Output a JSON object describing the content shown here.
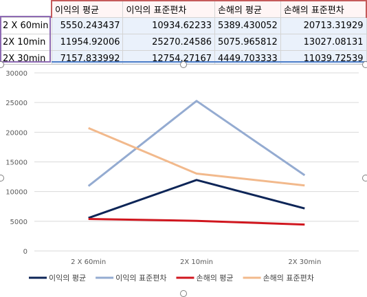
{
  "table": {
    "headers": [
      "",
      "이익의 평균",
      "이익의 표준편차",
      "손해의 평균",
      "손해의 표준편차"
    ],
    "rows": [
      {
        "label": "2 X 60min",
        "values": [
          "5550.243437",
          "10934.62233",
          "5389.430052",
          "20713.31929"
        ]
      },
      {
        "label": "2X 10min",
        "values": [
          "11954.92006",
          "25270.24586",
          "5075.965812",
          "13027.08131"
        ]
      },
      {
        "label": "2X 30min",
        "values": [
          "7157.833992",
          "12754.27167",
          "4449.703333",
          "11039.72539"
        ]
      }
    ]
  },
  "chart_data": {
    "type": "line",
    "categories": [
      "2 X 60min",
      "2X 10min",
      "2X 30min"
    ],
    "series": [
      {
        "name": "이익의 평균",
        "values": [
          5550.243437,
          11954.92006,
          7157.833992
        ],
        "color": "#0d2557"
      },
      {
        "name": "이익의 표준편차",
        "values": [
          10934.62233,
          25270.24586,
          12754.27167
        ],
        "color": "#94abd1"
      },
      {
        "name": "손해의 평균",
        "values": [
          5389.430052,
          5075.965812,
          4449.703333
        ],
        "color": "#d0161e"
      },
      {
        "name": "손해의 표준편차",
        "values": [
          20713.31929,
          13027.08131,
          11039.72539
        ],
        "color": "#f2b98c"
      }
    ],
    "yticks": [
      "30000",
      "25000",
      "20000",
      "15000",
      "10000",
      "5000",
      "0"
    ],
    "ylim": [
      0,
      30000
    ],
    "grid": true,
    "legend_position": "bottom"
  }
}
